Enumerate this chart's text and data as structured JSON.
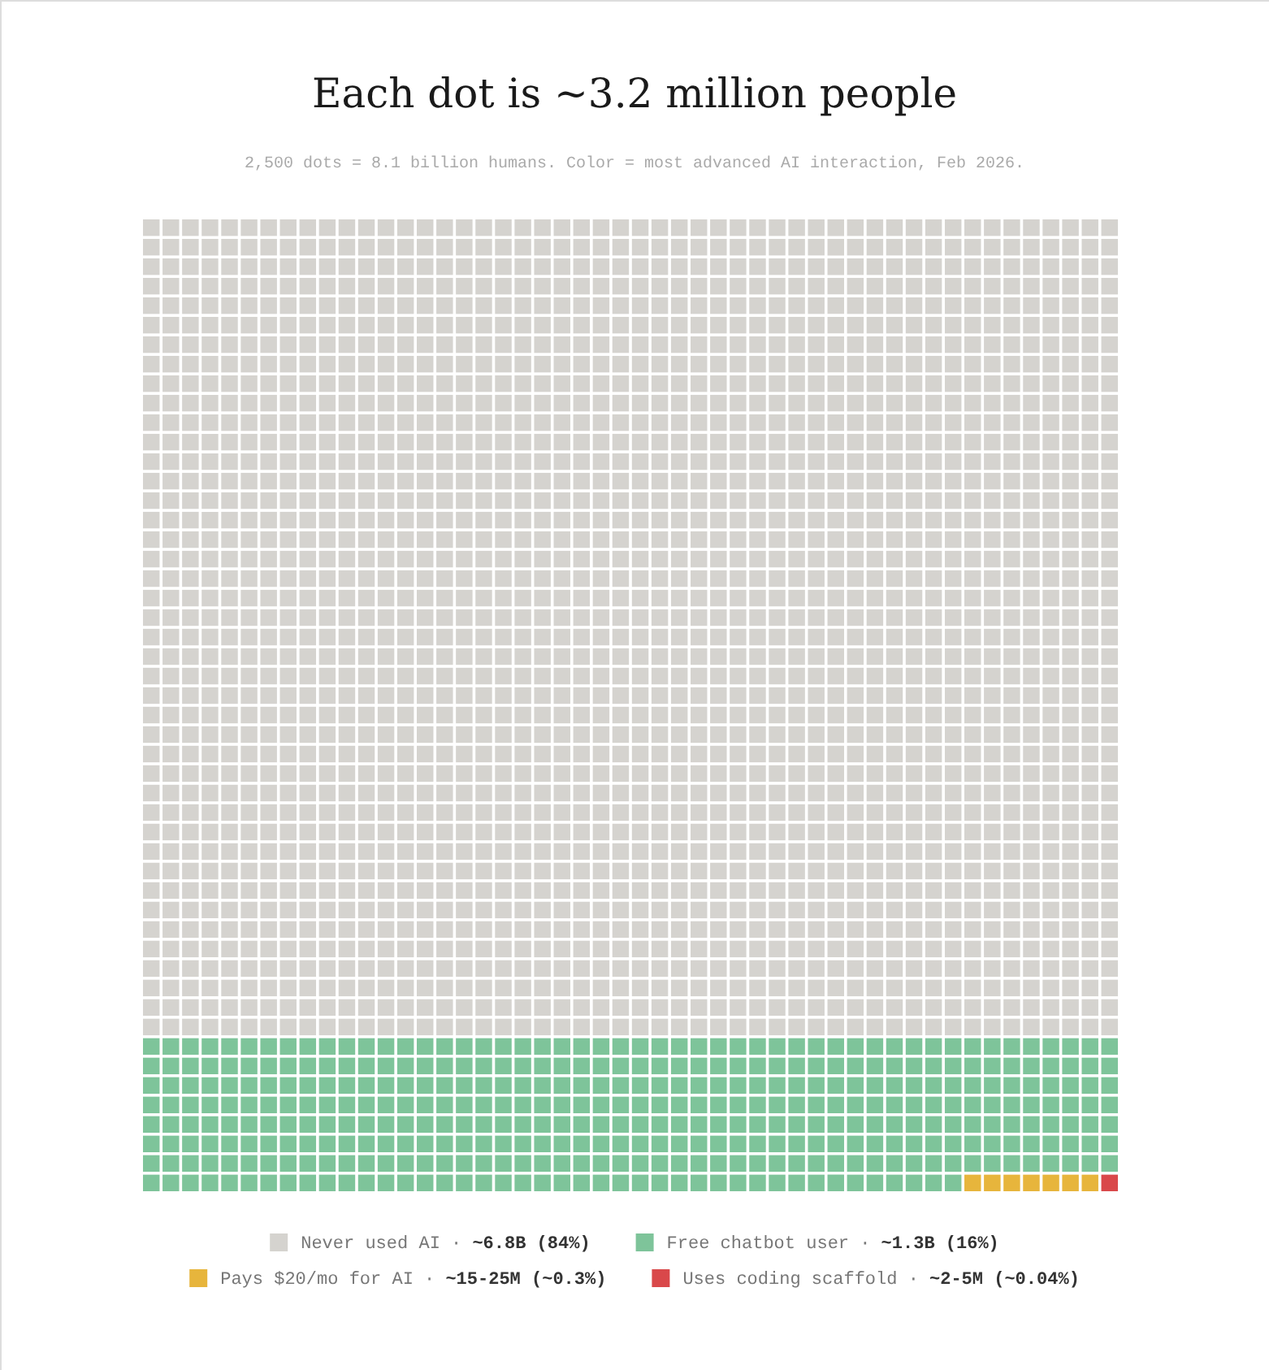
{
  "chart_data": {
    "type": "other",
    "title": "Each dot is ~3.2 million people",
    "subtitle": "2,500 dots = 8.1 billion humans. Color = most advanced AI interaction, Feb 2026.",
    "categories": [
      "Never used AI ·",
      "Free chatbot user ·",
      "Pays $20/mo for AI ·",
      "Uses coding scaffold ·"
    ],
    "values": [
      84,
      16,
      0.3,
      0.04
    ],
    "value_labels": [
      "~6.8B (84%)",
      "~1.3B (16%)",
      "~15-25M (~0.3%)",
      "~2-5M (~0.04%)"
    ],
    "colors": [
      "#d5d3cf",
      "#7ec49a",
      "#e7b53c",
      "#d9484a"
    ]
  }
}
